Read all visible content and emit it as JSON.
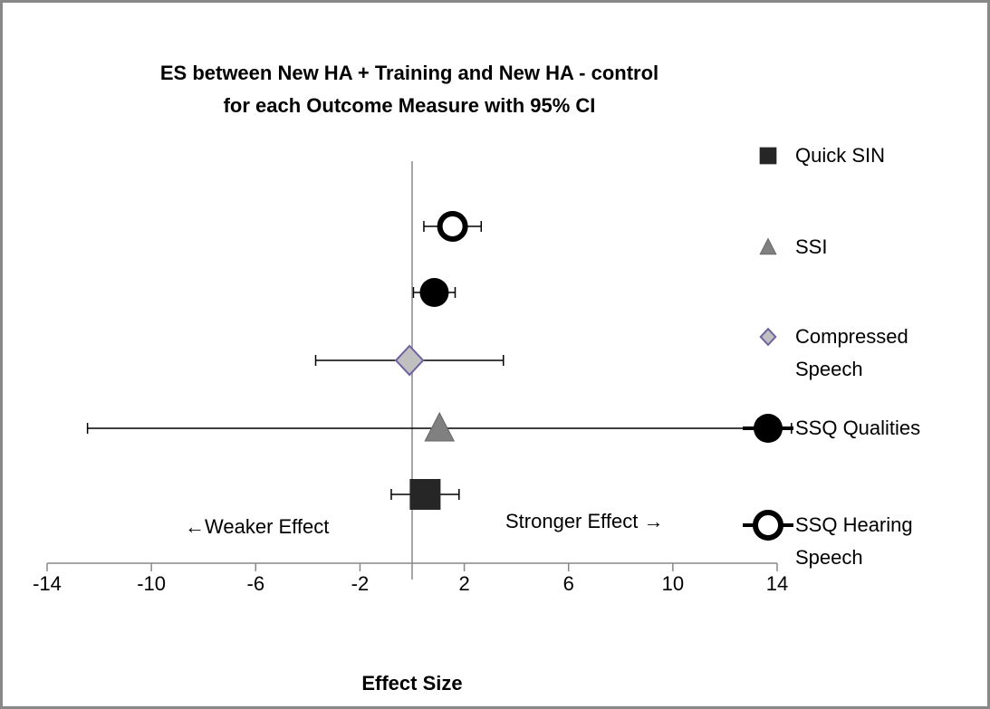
{
  "chart_data": {
    "type": "scatter",
    "title": "ES between New HA + Training  and New HA - control for each Outcome Measure with 95% CI",
    "xlabel": "Effect Size",
    "annotations": [
      "←Weaker Effect",
      "Stronger Effect →"
    ],
    "xlim": [
      -14,
      14
    ],
    "xticks": [
      -14,
      -10,
      -6,
      -2,
      2,
      6,
      10,
      14
    ],
    "series": [
      {
        "name": "Quick SIN",
        "color": "#262626",
        "marker": "square",
        "x": 0.5,
        "xerr": 1.3
      },
      {
        "name": "SSI",
        "color": "#808080",
        "marker": "triangle",
        "x": 1.05,
        "xerr": 13.5
      },
      {
        "name": "Compressed Speech",
        "color": "#c0c0c0",
        "marker": "diamond",
        "x": -0.1,
        "xerr": 3.6
      },
      {
        "name": "SSQ Qualities",
        "color": "#000000",
        "marker": "circle",
        "x": 0.85,
        "xerr": 0.8
      },
      {
        "name": "SSQ Hearing Speech",
        "color": "#000000",
        "marker": "open-circle",
        "x": 1.55,
        "xerr": 1.1
      }
    ]
  }
}
